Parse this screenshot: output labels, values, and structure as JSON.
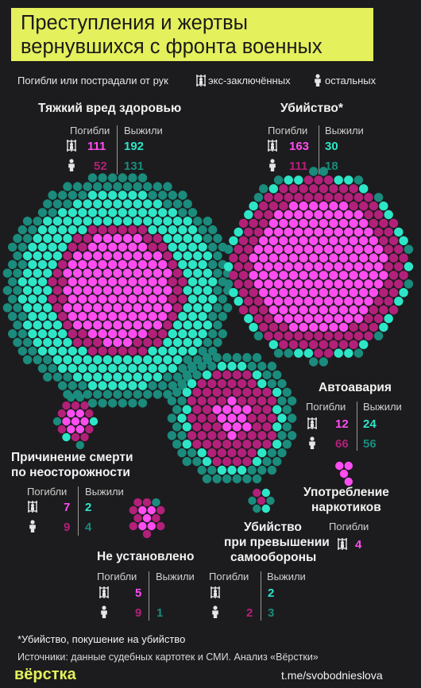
{
  "title_lines": [
    "Преступления и жертвы",
    "вернувшихся с фронта военных"
  ],
  "legend": {
    "prefix": "Погибли или пострадали от рук",
    "convict": "экс-заключённых",
    "other": "остальных"
  },
  "labels": {
    "died": "Погибли",
    "survived": "Выжили"
  },
  "colors": {
    "died_convict": "#ff4df0",
    "died_other": "#b3207a",
    "surv_convict": "#2de6c8",
    "surv_other": "#1a8b7c",
    "title_bg": "#e4f05c",
    "background": "#1c1c1e"
  },
  "chart_data": {
    "type": "bubble-cluster",
    "title": "Преступления и жертвы вернувшихся с фронта военных",
    "series": [
      "Погибли / экс-заключённые",
      "Погибли / остальные",
      "Выжили / экс-заключённые",
      "Выжили / остальные"
    ],
    "categories": [
      {
        "name": "Тяжкий вред здоровью",
        "died_convict": 111,
        "died_other": 52,
        "surv_convict": 192,
        "surv_other": 131
      },
      {
        "name": "Убийство*",
        "died_convict": 163,
        "died_other": 111,
        "surv_convict": 30,
        "surv_other": 18
      },
      {
        "name": "Автоавария",
        "died_convict": 12,
        "died_other": 66,
        "surv_convict": 24,
        "surv_other": 56
      },
      {
        "name": "Причинение смерти по неосторожности",
        "died_convict": 7,
        "died_other": 9,
        "surv_convict": 2,
        "surv_other": 4
      },
      {
        "name": "Употребление наркотиков",
        "died_convict": 4,
        "died_other": null,
        "surv_convict": null,
        "surv_other": null
      },
      {
        "name": "Убийство при превышении самообороны",
        "died_convict": null,
        "died_other": 2,
        "surv_convict": 2,
        "surv_other": 3
      },
      {
        "name": "Не установлено",
        "died_convict": 5,
        "died_other": 9,
        "surv_convict": null,
        "surv_other": 1
      }
    ]
  },
  "blocks": {
    "harm": {
      "title": "Тяжкий вред здоровью",
      "dc": "111",
      "do": "52",
      "sc": "192",
      "so": "131"
    },
    "murder": {
      "title": "Убийство*",
      "dc": "163",
      "do": "111",
      "sc": "30",
      "so": "18"
    },
    "auto": {
      "title": "Автоавария",
      "dc": "12",
      "do": "66",
      "sc": "24",
      "so": "56"
    },
    "neglig": {
      "title1": "Причинение смерти",
      "title2": "по неосторожности",
      "dc": "7",
      "do": "9",
      "sc": "2",
      "so": "4"
    },
    "drugs": {
      "title1": "Употребление",
      "title2": "наркотиков",
      "dc": "4"
    },
    "selfdef": {
      "title1": "Убийство",
      "title2": "при превышении",
      "title3": "самообороны",
      "do": "2",
      "sc": "2",
      "so": "3"
    },
    "unknown": {
      "title": "Не установлено",
      "dc": "5",
      "do": "9",
      "so": "1"
    }
  },
  "footnote": "*Убийство, покушение на убийство",
  "sources": "Источники: данные судебных картотек и СМИ. Анализ «Вёрстки»",
  "brand": "вёрстка",
  "channel": "t.me/svobodnieslova"
}
